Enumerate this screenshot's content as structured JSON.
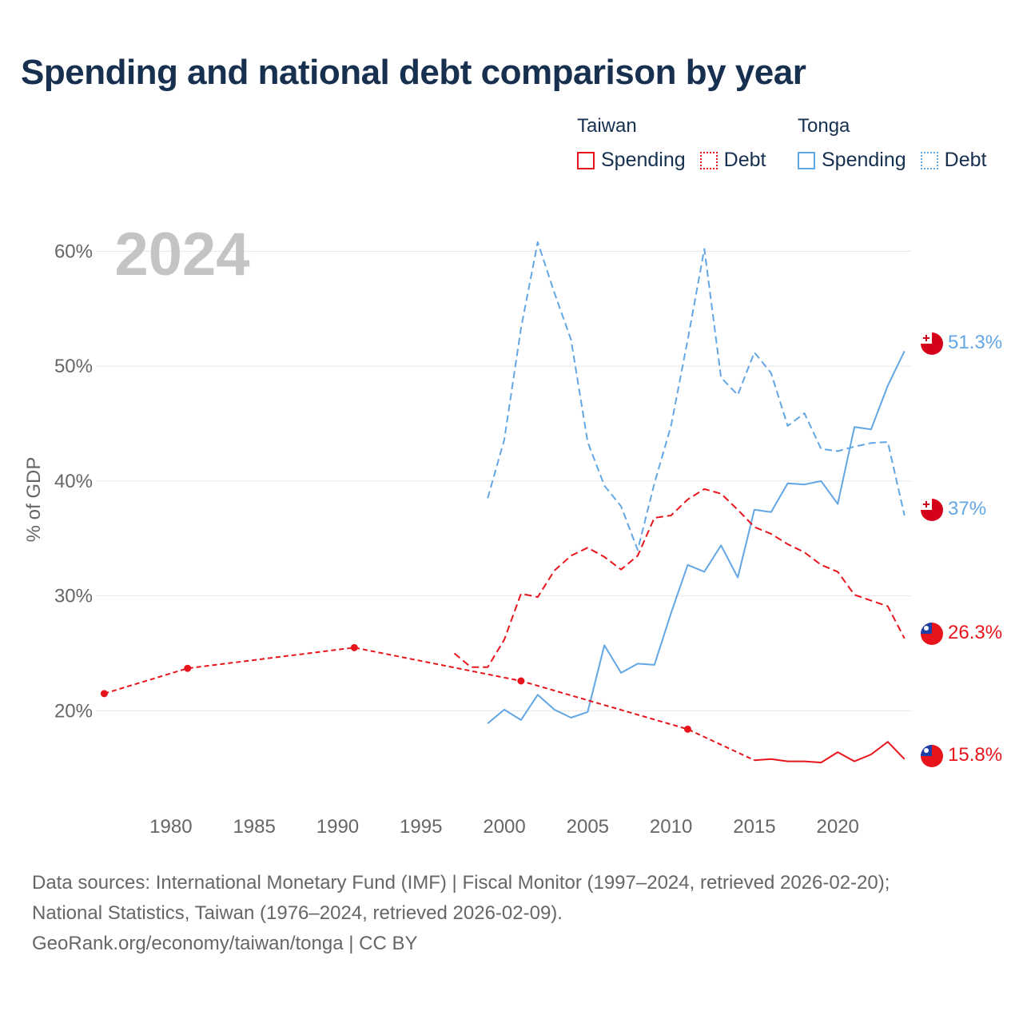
{
  "title": "Spending and national debt comparison by year",
  "legend": {
    "groups": [
      {
        "country": "Taiwan",
        "items": [
          {
            "label": "Spending",
            "style": "solid",
            "color": "#e8141b"
          },
          {
            "label": "Debt",
            "style": "dotted",
            "color": "#e8141b"
          }
        ]
      },
      {
        "country": "Tonga",
        "items": [
          {
            "label": "Spending",
            "style": "solid",
            "color": "#62a6e4"
          },
          {
            "label": "Debt",
            "style": "dotted",
            "color": "#62a6e4"
          }
        ]
      }
    ]
  },
  "year_label": "2024",
  "colors": {
    "taiwan": "#e8141b",
    "tonga": "#62a6e4",
    "title": "#17304f",
    "axis_text": "#666666",
    "year_watermark": "#c4c4c4",
    "grid": "#e6e6e6"
  },
  "footer": {
    "line1": "Data sources: International Monetary Fund (IMF) | Fiscal Monitor (1997–2024, retrieved 2026-02-20);",
    "line2": "National Statistics, Taiwan (1976–2024, retrieved 2026-02-09).",
    "line3": "GeoRank.org/economy/taiwan/tonga | CC BY"
  },
  "chart_data": {
    "type": "line",
    "title": "Spending and national debt comparison by year",
    "xlabel": "",
    "ylabel": "% of GDP",
    "xlim": [
      1975.5,
      2024.4
    ],
    "ylim": [
      13,
      61
    ],
    "x_ticks": [
      1980,
      1985,
      1990,
      1995,
      2000,
      2005,
      2010,
      2015,
      2020
    ],
    "x_tick_labels": [
      "1980",
      "1985",
      "1990",
      "1995",
      "2000",
      "2005",
      "2010",
      "2015",
      "2020"
    ],
    "y_ticks": [
      20,
      30,
      40,
      50,
      60
    ],
    "y_tick_labels": [
      "20%",
      "30%",
      "40%",
      "50%",
      "60%"
    ],
    "series": [
      {
        "name": "Tonga Debt",
        "country": "Tonga",
        "measure": "Debt",
        "style": "dashed",
        "color": "#62a6e4",
        "end_label": "37%",
        "x": [
          1999,
          2000,
          2001,
          2002,
          2003,
          2004,
          2005,
          2006,
          2007,
          2008,
          2009,
          2010,
          2011,
          2012,
          2013,
          2014,
          2015,
          2016,
          2017,
          2018,
          2019,
          2020,
          2021,
          2022,
          2023,
          2024
        ],
        "values": [
          38.5,
          43.6,
          53.3,
          60.8,
          56.4,
          52.3,
          43.4,
          39.6,
          37.8,
          34.0,
          39.8,
          44.8,
          52.3,
          60.2,
          49.0,
          47.5,
          51.2,
          49.4,
          44.8,
          45.9,
          42.8,
          42.6,
          43.0,
          43.3,
          43.4,
          37.0
        ]
      },
      {
        "name": "Tonga Spending",
        "country": "Tonga",
        "measure": "Spending",
        "style": "solid",
        "color": "#62a6e4",
        "end_label": "51.3%",
        "x": [
          1999,
          2000,
          2001,
          2002,
          2003,
          2004,
          2005,
          2006,
          2007,
          2008,
          2009,
          2010,
          2011,
          2012,
          2013,
          2014,
          2015,
          2016,
          2017,
          2018,
          2019,
          2020,
          2021,
          2022,
          2023,
          2024
        ],
        "values": [
          18.9,
          20.1,
          19.2,
          21.4,
          20.1,
          19.4,
          19.9,
          25.7,
          23.3,
          24.1,
          24.0,
          28.5,
          32.7,
          32.1,
          34.4,
          31.6,
          37.5,
          37.3,
          39.8,
          39.7,
          40.0,
          38.0,
          44.7,
          44.5,
          48.3,
          51.3
        ]
      },
      {
        "name": "Taiwan Debt",
        "country": "Taiwan",
        "measure": "Debt",
        "style": "dashed",
        "color": "#e8141b",
        "end_label": "26.3%",
        "x": [
          1997,
          1998,
          1999,
          2000,
          2001,
          2002,
          2003,
          2004,
          2005,
          2006,
          2007,
          2008,
          2009,
          2010,
          2011,
          2012,
          2013,
          2014,
          2015,
          2016,
          2017,
          2018,
          2019,
          2020,
          2021,
          2022,
          2023,
          2024
        ],
        "values": [
          25.0,
          23.8,
          23.8,
          26.2,
          30.2,
          29.9,
          32.2,
          33.5,
          34.2,
          33.4,
          32.3,
          33.5,
          36.8,
          37.0,
          38.4,
          39.3,
          38.9,
          37.5,
          36.0,
          35.4,
          34.5,
          33.8,
          32.7,
          32.1,
          30.1,
          29.6,
          29.1,
          26.3
        ]
      },
      {
        "name": "Taiwan Spending",
        "country": "Taiwan",
        "measure": "Spending",
        "style": "dashed-to-solid",
        "color": "#e8141b",
        "end_label": "15.8%",
        "x": [
          1976,
          1981,
          1991,
          2001,
          2011,
          2015,
          2016,
          2017,
          2018,
          2019,
          2020,
          2021,
          2022,
          2023,
          2024
        ],
        "values": [
          21.5,
          23.7,
          25.5,
          22.6,
          18.4,
          15.7,
          15.8,
          15.6,
          15.6,
          15.5,
          16.4,
          15.6,
          16.2,
          17.3,
          15.8
        ],
        "markers_at": [
          1976,
          1981,
          1991,
          2001,
          2011
        ],
        "solid_from": 2015
      }
    ]
  }
}
